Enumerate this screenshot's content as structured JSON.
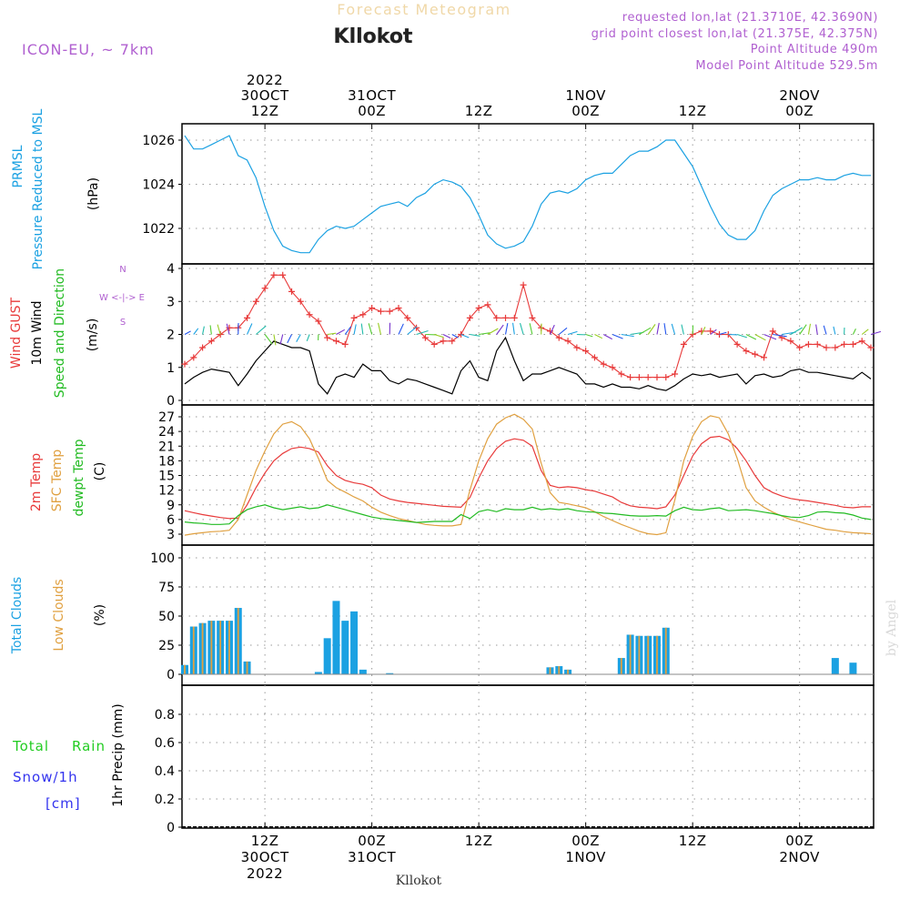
{
  "header": {
    "product": "Forecast Meteogram",
    "location": "Kllokot",
    "model": "ICON-EU, ~ 7km",
    "requested": "requested lon,lat (21.3710E, 42.3690N)",
    "grid": "grid point closest lon,lat (21.375E, 42.375N)",
    "point_alt": "Point Altitude 490m",
    "model_alt": "Model Point Altitude 529.5m",
    "credit": "by Angel",
    "footer": "Kllokot"
  },
  "colors": {
    "pressure": "#1ba1e2",
    "gust": "#e83a3a",
    "wind": "#000000",
    "t2m": "#e83a3a",
    "tsfc": "#e0a040",
    "dewpt": "#22bb22",
    "total_clouds": "#1ba1e2",
    "low_clouds": "#e0a040",
    "rain": "#22cc22",
    "snow": "#3333ee",
    "meta": "#b060d0"
  },
  "time_axis": {
    "start": "2022-10-30 03Z",
    "end": "2022-11-02 06Z",
    "step_hours": 1,
    "top_ticks": [
      {
        "lines": [
          "2022",
          "30OCT",
          "12Z"
        ],
        "hour": 9
      },
      {
        "lines": [
          "31OCT",
          "00Z"
        ],
        "hour": 21
      },
      {
        "lines": [
          "12Z"
        ],
        "hour": 33
      },
      {
        "lines": [
          "1NOV",
          "00Z"
        ],
        "hour": 45
      },
      {
        "lines": [
          "12Z"
        ],
        "hour": 57
      },
      {
        "lines": [
          "2NOV",
          "00Z"
        ],
        "hour": 69
      }
    ],
    "bottom_ticks": [
      {
        "lines": [
          "12Z",
          "30OCT",
          "2022"
        ],
        "hour": 9
      },
      {
        "lines": [
          "00Z",
          "31OCT"
        ],
        "hour": 21
      },
      {
        "lines": [
          "12Z"
        ],
        "hour": 33
      },
      {
        "lines": [
          "00Z",
          "1NOV"
        ],
        "hour": 45
      },
      {
        "lines": [
          "12Z"
        ],
        "hour": 57
      },
      {
        "lines": [
          "00Z",
          "2NOV"
        ],
        "hour": 69
      }
    ]
  },
  "chart_data": [
    {
      "type": "line",
      "id": "pressure",
      "title": "PRMSL Pressure Reduced to MSL",
      "label_lines": [
        "PRMSL",
        "Pressure Reduced to MSL"
      ],
      "ylabel": "(hPa)",
      "ylim": [
        1020.6,
        1026.6
      ],
      "yticks": [
        "1022",
        "1024",
        "1026"
      ],
      "series": [
        {
          "name": "PRMSL",
          "values": [
            1026.2,
            1025.6,
            1025.6,
            1025.8,
            1026.0,
            1026.2,
            1025.3,
            1025.1,
            1024.3,
            1023.0,
            1021.9,
            1021.2,
            1021.0,
            1020.9,
            1020.9,
            1021.5,
            1021.9,
            1022.1,
            1022.0,
            1022.1,
            1022.4,
            1022.7,
            1023.0,
            1023.1,
            1023.2,
            1023.0,
            1023.4,
            1023.6,
            1024.0,
            1024.2,
            1024.1,
            1023.9,
            1023.4,
            1022.6,
            1021.7,
            1021.3,
            1021.1,
            1021.2,
            1021.4,
            1022.1,
            1023.1,
            1023.6,
            1023.7,
            1023.6,
            1023.8,
            1024.2,
            1024.4,
            1024.5,
            1024.5,
            1024.9,
            1025.3,
            1025.5,
            1025.5,
            1025.7,
            1026.0,
            1026.0,
            1025.4,
            1024.8,
            1023.9,
            1023.0,
            1022.2,
            1021.7,
            1021.5,
            1021.5,
            1021.9,
            1022.8,
            1023.5,
            1023.8,
            1024.0,
            1024.2,
            1024.2,
            1024.3,
            1024.2,
            1024.2,
            1024.4,
            1024.5,
            1024.4,
            1024.4
          ]
        }
      ]
    },
    {
      "type": "line",
      "id": "wind",
      "title": "Wind GUST 10m Wind Speed and Direction",
      "label_lines": [
        "Wind GUST",
        "10m Wind",
        "Speed and Direction"
      ],
      "ylabel": "(m/s)",
      "compass": [
        "N",
        "W <-|-> E",
        "S"
      ],
      "ylim": [
        0,
        4
      ],
      "yticks": [
        "0",
        "1",
        "2",
        "3",
        "4"
      ],
      "series": [
        {
          "name": "Wind GUST",
          "values": [
            1.1,
            1.3,
            1.6,
            1.8,
            2.0,
            2.2,
            2.2,
            2.5,
            3.0,
            3.4,
            3.8,
            3.8,
            3.3,
            3.0,
            2.6,
            2.4,
            1.9,
            1.8,
            1.7,
            2.5,
            2.6,
            2.8,
            2.7,
            2.7,
            2.8,
            2.5,
            2.2,
            1.9,
            1.7,
            1.8,
            1.8,
            2.0,
            2.5,
            2.8,
            2.9,
            2.5,
            2.5,
            2.5,
            3.5,
            2.5,
            2.2,
            2.1,
            1.9,
            1.8,
            1.6,
            1.5,
            1.3,
            1.1,
            1.0,
            0.8,
            0.7,
            0.7,
            0.7,
            0.7,
            0.7,
            0.8,
            1.7,
            2.0,
            2.1,
            2.1,
            2.0,
            2.0,
            1.7,
            1.5,
            1.4,
            1.3,
            2.1,
            1.9,
            1.8,
            1.6,
            1.7,
            1.7,
            1.6,
            1.6,
            1.7,
            1.7,
            1.8,
            1.6
          ]
        },
        {
          "name": "10m Wind",
          "values": [
            0.5,
            0.7,
            0.85,
            0.95,
            0.9,
            0.85,
            0.45,
            0.8,
            1.2,
            1.5,
            1.8,
            1.7,
            1.6,
            1.6,
            1.5,
            0.5,
            0.2,
            0.7,
            0.8,
            0.7,
            1.1,
            0.9,
            0.9,
            0.6,
            0.5,
            0.65,
            0.6,
            0.5,
            0.4,
            0.3,
            0.2,
            0.9,
            1.2,
            0.7,
            0.6,
            1.5,
            1.9,
            1.2,
            0.6,
            0.8,
            0.8,
            0.9,
            1.0,
            0.9,
            0.8,
            0.5,
            0.5,
            0.4,
            0.5,
            0.4,
            0.4,
            0.35,
            0.45,
            0.35,
            0.3,
            0.45,
            0.65,
            0.8,
            0.75,
            0.8,
            0.7,
            0.75,
            0.8,
            0.5,
            0.75,
            0.8,
            0.7,
            0.75,
            0.9,
            0.95,
            0.85,
            0.85,
            0.8,
            0.75,
            0.7,
            0.65,
            0.85,
            0.65
          ]
        }
      ]
    },
    {
      "type": "line",
      "id": "temperature",
      "title": "2m Temp SFC Temp dewpt Temp",
      "label_lines": [
        "2m Temp",
        "SFC Temp",
        "dewpt Temp"
      ],
      "ylabel": "(C)",
      "ylim": [
        1,
        28.5
      ],
      "yticks": [
        "3",
        "6",
        "9",
        "12",
        "15",
        "18",
        "21",
        "24",
        "27"
      ],
      "series": [
        {
          "name": "2m Temp",
          "values": [
            7.8,
            7.4,
            7.0,
            6.7,
            6.4,
            6.2,
            6.3,
            9.0,
            12.5,
            15.5,
            18.0,
            19.5,
            20.5,
            20.8,
            20.5,
            19.8,
            17.0,
            15.0,
            14.0,
            13.5,
            13.2,
            12.5,
            11.0,
            10.2,
            9.8,
            9.5,
            9.3,
            9.1,
            8.9,
            8.7,
            8.6,
            8.5,
            10.5,
            14.5,
            18.0,
            20.5,
            22.0,
            22.5,
            22.2,
            21.0,
            16.0,
            13.0,
            12.5,
            12.7,
            12.5,
            12.1,
            11.8,
            11.2,
            10.6,
            9.5,
            8.8,
            8.5,
            8.4,
            8.2,
            8.6,
            11.0,
            15.0,
            19.0,
            21.5,
            22.8,
            23.0,
            22.3,
            20.5,
            18.0,
            15.0,
            12.5,
            11.5,
            10.8,
            10.3,
            10.0,
            9.8,
            9.5,
            9.2,
            8.9,
            8.5,
            8.4,
            8.6,
            8.6
          ]
        },
        {
          "name": "SFC Temp",
          "values": [
            2.8,
            3.1,
            3.3,
            3.5,
            3.6,
            3.8,
            6.0,
            11.0,
            16.0,
            20.0,
            23.5,
            25.5,
            26.0,
            25.0,
            22.5,
            18.5,
            14.0,
            12.5,
            11.6,
            10.6,
            9.8,
            8.5,
            7.5,
            6.8,
            6.2,
            5.8,
            5.4,
            5.0,
            4.8,
            4.7,
            4.7,
            5.0,
            12.0,
            18.0,
            22.5,
            25.5,
            26.8,
            27.5,
            26.5,
            24.5,
            17.5,
            11.5,
            9.5,
            9.2,
            8.8,
            8.4,
            7.6,
            6.6,
            5.8,
            5.0,
            4.3,
            3.6,
            3.1,
            2.9,
            3.3,
            10.0,
            18.0,
            23.0,
            26.0,
            27.2,
            26.8,
            23.5,
            18.5,
            12.5,
            9.8,
            8.5,
            7.5,
            6.7,
            6.0,
            5.5,
            5.0,
            4.5,
            4.0,
            3.8,
            3.5,
            3.3,
            3.2,
            3.1
          ]
        },
        {
          "name": "dewpt Temp",
          "values": [
            5.5,
            5.3,
            5.2,
            5.0,
            5.0,
            5.1,
            6.8,
            8.0,
            8.6,
            9.0,
            8.4,
            8.0,
            8.3,
            8.6,
            8.2,
            8.4,
            9.0,
            8.5,
            8.0,
            7.5,
            7.0,
            6.5,
            6.2,
            6.0,
            5.8,
            5.6,
            5.4,
            5.5,
            5.6,
            5.6,
            5.6,
            7.0,
            6.2,
            7.6,
            8.0,
            7.6,
            8.2,
            8.0,
            8.0,
            8.5,
            8.0,
            8.2,
            8.0,
            8.2,
            7.8,
            7.6,
            7.5,
            7.3,
            7.2,
            7.0,
            6.8,
            6.7,
            6.7,
            6.8,
            6.7,
            7.8,
            8.5,
            8.0,
            7.9,
            8.2,
            8.4,
            7.8,
            7.9,
            8.0,
            7.8,
            7.5,
            7.2,
            6.8,
            6.5,
            6.4,
            6.8,
            7.5,
            7.6,
            7.4,
            7.3,
            6.9,
            6.3,
            6.0
          ]
        }
      ]
    },
    {
      "type": "bar",
      "id": "clouds",
      "title": "Total Clouds Low Clouds",
      "label_lines": [
        "Total Clouds",
        "Low Clouds"
      ],
      "ylabel": "(%)",
      "ylim": [
        -5,
        110
      ],
      "yticks": [
        "0",
        "25",
        "50",
        "75",
        "100"
      ],
      "series": [
        {
          "name": "Total Clouds",
          "values": [
            8,
            41,
            44,
            46,
            46,
            46,
            57,
            11,
            0,
            0,
            0,
            0,
            0,
            0,
            0,
            2,
            31,
            63,
            46,
            54,
            4,
            0,
            0,
            1,
            0,
            0,
            0,
            0,
            0,
            0,
            0,
            0,
            0,
            0,
            0,
            0,
            0,
            0,
            0,
            0,
            0,
            6,
            7,
            4,
            0,
            0,
            0,
            0,
            0,
            14,
            34,
            33,
            33,
            33,
            40,
            0,
            0,
            0,
            0,
            0,
            0,
            0,
            0,
            0,
            0,
            0,
            0,
            0,
            0,
            0,
            0,
            0,
            0,
            14,
            0,
            10,
            0,
            0
          ]
        },
        {
          "name": "Low Clouds",
          "values": [
            8,
            41,
            44,
            46,
            46,
            46,
            57,
            11,
            0,
            0,
            0,
            0,
            0,
            0,
            0,
            0,
            0,
            0,
            0,
            0,
            0,
            0,
            0,
            0,
            0,
            0,
            0,
            0,
            0,
            0,
            0,
            0,
            0,
            0,
            0,
            0,
            0,
            0,
            0,
            0,
            0,
            6,
            7,
            4,
            0,
            0,
            0,
            0,
            0,
            14,
            34,
            33,
            33,
            33,
            40,
            0,
            0,
            0,
            0,
            0,
            0,
            0,
            0,
            0,
            0,
            0,
            0,
            0,
            0,
            0,
            0,
            0,
            0,
            0,
            0,
            0,
            0,
            0
          ]
        }
      ]
    },
    {
      "type": "bar",
      "id": "precip",
      "title": "Total Rain Snow/1h [cm]",
      "label_lines": [
        "Total",
        "Rain",
        "Snow/1h",
        "[cm]"
      ],
      "ylabel": "1hr Precip (mm)",
      "ylim": [
        0,
        1.0
      ],
      "yticks": [
        "0",
        "0.2",
        "0.4",
        "0.6",
        "0.8"
      ],
      "series": [
        {
          "name": "Total Rain",
          "values": []
        },
        {
          "name": "Snow/1h",
          "values": []
        }
      ]
    }
  ]
}
